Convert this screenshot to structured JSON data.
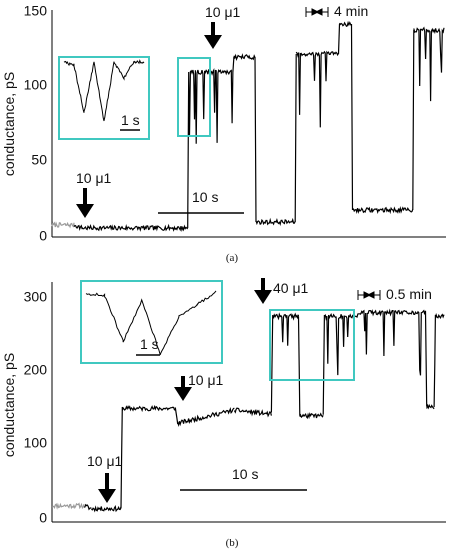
{
  "chart_data": [
    {
      "type": "line",
      "panel_label": "(a)",
      "ylabel": "conductance, pS",
      "ylim": [
        0,
        150
      ],
      "y_ticks": [
        "0",
        "50",
        "100",
        "150"
      ],
      "grid": false,
      "colors": {
        "trace": "#000000",
        "baseline": "#9a9a9a",
        "box": "#40c8c0"
      },
      "series": [
        {
          "values": [
            [
              0.0,
              8
            ],
            [
              2.2,
              8
            ],
            [
              3.0,
              6
            ],
            [
              13.5,
              6
            ],
            [
              13.6,
              110
            ],
            [
              18.0,
              110
            ],
            [
              18.1,
              120
            ],
            [
              20.2,
              120
            ],
            [
              20.3,
              10
            ],
            [
              24.2,
              10
            ],
            [
              24.3,
              122
            ],
            [
              28.5,
              122
            ],
            [
              28.6,
              142
            ],
            [
              29.8,
              142
            ],
            [
              29.9,
              18
            ],
            [
              35.9,
              18
            ],
            [
              36.0,
              138
            ],
            [
              39.0,
              138
            ]
          ]
        }
      ],
      "inset": {
        "values": [
          [
            0,
            110
          ],
          [
            1,
            108
          ],
          [
            2,
            78
          ],
          [
            3,
            110
          ],
          [
            4,
            72
          ],
          [
            5,
            110
          ],
          [
            6,
            100
          ],
          [
            7,
            110
          ],
          [
            8,
            110
          ]
        ]
      },
      "annotations": [
        "10 μ1",
        "10 μ1",
        "4 min",
        "10 s",
        "1 s"
      ]
    },
    {
      "type": "line",
      "panel_label": "(b)",
      "ylabel": "conductance, pS",
      "ylim": [
        0,
        300
      ],
      "y_ticks": [
        "0",
        "100",
        "200",
        "300"
      ],
      "grid": false,
      "colors": {
        "trace": "#000000",
        "baseline": "#9a9a9a",
        "box": "#40c8c0"
      },
      "series": [
        {
          "values": [
            [
              0.0,
              18
            ],
            [
              2.6,
              18
            ],
            [
              3.2,
              14
            ],
            [
              5.6,
              14
            ],
            [
              5.7,
              150
            ],
            [
              10.0,
              150
            ],
            [
              10.2,
              130
            ],
            [
              14.8,
              148
            ],
            [
              17.8,
              142
            ],
            [
              17.9,
              275
            ],
            [
              20.0,
              275
            ],
            [
              20.1,
              140
            ],
            [
              22.0,
              140
            ],
            [
              22.1,
              275
            ],
            [
              24.6,
              275
            ],
            [
              25.1,
              280
            ],
            [
              30.3,
              280
            ],
            [
              30.4,
              152
            ],
            [
              31.0,
              152
            ],
            [
              31.1,
              275
            ],
            [
              31.8,
              275
            ]
          ]
        }
      ],
      "inset": {
        "values": [
          [
            0,
            298
          ],
          [
            1,
            296
          ],
          [
            2,
            240
          ],
          [
            3,
            290
          ],
          [
            4,
            225
          ],
          [
            5,
            270
          ],
          [
            6,
            285
          ],
          [
            7,
            300
          ]
        ]
      },
      "annotations": [
        "10 μ1",
        "10 μ1",
        "40 μ1",
        "0.5 min",
        "10 s",
        "1 s"
      ]
    }
  ]
}
